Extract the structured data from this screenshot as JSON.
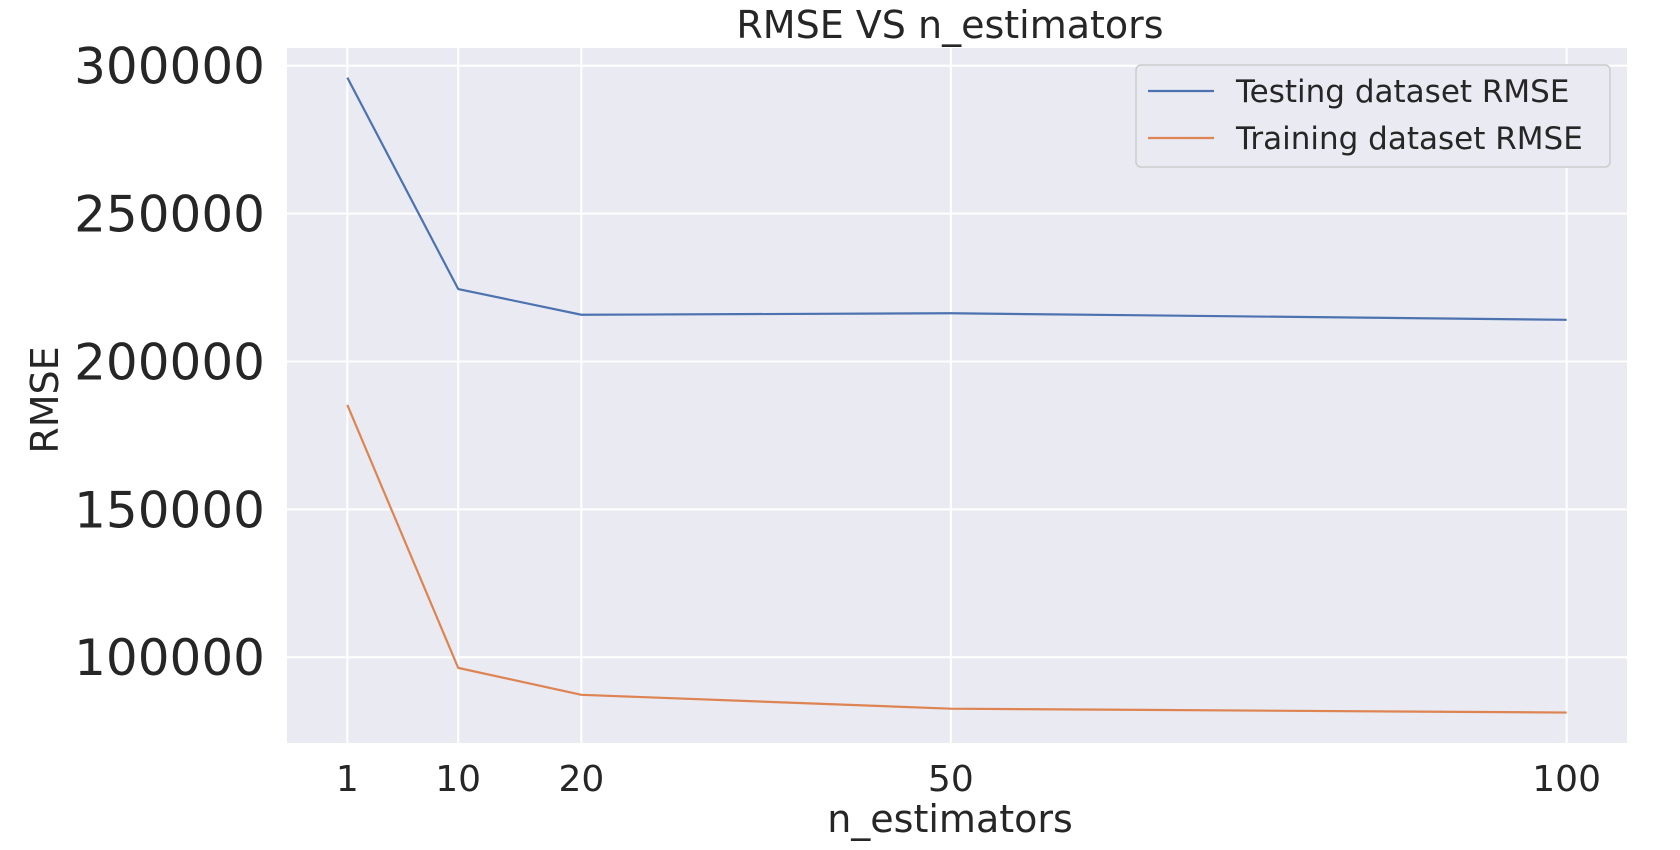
{
  "chart_data": {
    "type": "line",
    "title": "RMSE VS n_estimators",
    "xlabel": "n_estimators",
    "ylabel": "RMSE",
    "x": [
      1,
      10,
      20,
      50,
      100
    ],
    "xticks": [
      1,
      10,
      20,
      50,
      100
    ],
    "xlim": [
      -3.9,
      104.9
    ],
    "yticks": [
      100000,
      150000,
      200000,
      250000,
      300000
    ],
    "ylim": [
      71000,
      306000
    ],
    "grid": true,
    "background": "#eaeaf2",
    "legend_position": "top-right",
    "series": [
      {
        "name": "Testing dataset RMSE",
        "color": "#4c72b0",
        "values": [
          296000,
          224500,
          215800,
          216300,
          214100
        ]
      },
      {
        "name": "Training dataset RMSE",
        "color": "#dd8452",
        "values": [
          185300,
          96400,
          87300,
          82600,
          81300
        ]
      }
    ]
  }
}
